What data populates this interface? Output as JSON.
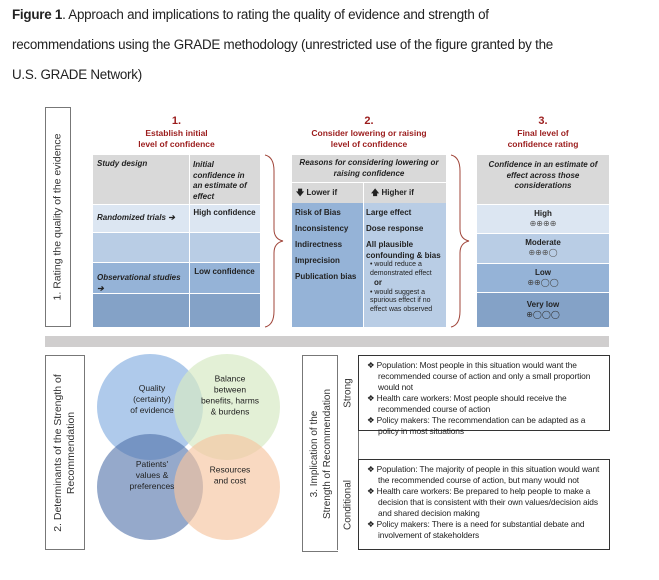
{
  "caption": {
    "label": "Figure 1",
    "line1": ".  Approach and implications to rating the quality of evidence and strength of",
    "line2": "recommendations using the GRADE methodology (unrestricted use of the figure granted by the",
    "line3": "U.S. GRADE Network)"
  },
  "section1": {
    "side_label": "1. Rating the quality of the evidence",
    "col1": {
      "num": "1.",
      "title_l1": "Establish initial",
      "title_l2": "level of confidence",
      "header_study": "Study design",
      "header_conf": "Initial confidence in an estimate of effect",
      "rows": [
        {
          "design": "Randomized trials ➔",
          "confidence": "High confidence"
        },
        {
          "design": "",
          "confidence": ""
        },
        {
          "design": "Observational studies ➔",
          "confidence": "Low confidence"
        },
        {
          "design": "",
          "confidence": ""
        }
      ]
    },
    "col2": {
      "num": "2.",
      "title_l1": "Consider lowering or raising",
      "title_l2": "level of confidence",
      "header": "Reasons for considering lowering or raising confidence",
      "lower_label": "🡇 Lower if",
      "higher_label": "🡅 Higher if",
      "lower_items": [
        "Risk of Bias",
        "Inconsistency",
        "Indirectness",
        "Imprecision",
        "Publication bias"
      ],
      "higher_items": [
        "Large effect",
        "Dose response",
        "All plausible confounding & bias"
      ],
      "higher_sub1": "• would reduce a demonstrated effect",
      "higher_or": "or",
      "higher_sub2": "• would suggest a spurious effect if no effect was observed"
    },
    "col3": {
      "num": "3.",
      "title_l1": "Final level of",
      "title_l2": "confidence rating",
      "header": "Confidence in an estimate of effect across those considerations",
      "levels": [
        {
          "label": "High",
          "symbols": "⊕⊕⊕⊕"
        },
        {
          "label": "Moderate",
          "symbols": "⊕⊕⊕◯"
        },
        {
          "label": "Low",
          "symbols": "⊕⊕◯◯"
        },
        {
          "label": "Very low",
          "symbols": "⊕◯◯◯"
        }
      ]
    }
  },
  "section2": {
    "side_label_l1": "2. Determinants of the Strength of",
    "side_label_l2": "Recommendation",
    "venn": [
      {
        "lines": [
          "Quality",
          "(certainty)",
          "of evidence"
        ],
        "color": "#8db3e2"
      },
      {
        "lines": [
          "Balance",
          "between",
          "benefits, harms",
          "& burdens"
        ],
        "color": "#d7e9c4"
      },
      {
        "lines": [
          "Patients'",
          "values &",
          "preferences"
        ],
        "color": "#4f6fa8"
      },
      {
        "lines": [
          "Resources",
          "and cost"
        ],
        "color": "#f6c4a0"
      }
    ]
  },
  "section3": {
    "side_label_l1": "3. Implication of the",
    "side_label_l2": "Strength of Recommendation",
    "strong": {
      "label": "Strong",
      "items": [
        "❖ Population: Most people in this situation would want the recommended course of action and only a small proportion would not",
        "❖ Health care workers: Most people should receive the recommended course of action",
        "❖ Policy makers: The recommendation can be adapted as a policy in most situations"
      ]
    },
    "conditional": {
      "label": "Conditional",
      "items": [
        "❖ Population: The majority of people in this situation would want the recommended course of action, but many would not",
        "❖ Health care workers: Be prepared to help people to make a decision that is consistent with their own values/decision aids and shared decision making",
        "❖ Policy makers: There is a need for substantial debate and involvement of stakeholders"
      ]
    }
  }
}
